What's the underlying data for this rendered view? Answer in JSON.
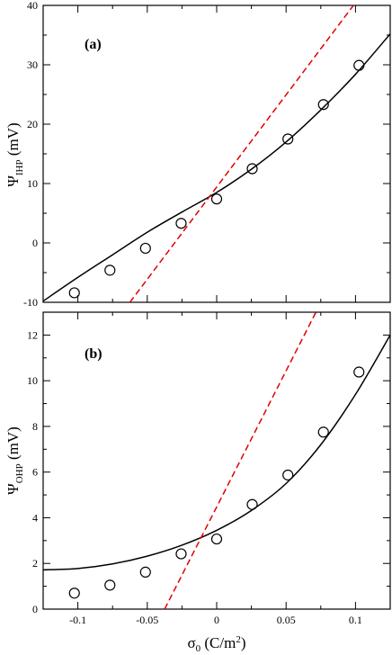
{
  "colors": {
    "axis": "#000000",
    "fit": "#000000",
    "linear": "#e00000",
    "marker": "#000000"
  },
  "xaxis": {
    "label_main": "σ",
    "label_sub": "0",
    "label_unit_pre": " (C/m",
    "label_unit_sup": "2",
    "label_unit_post": ")",
    "ticklabels": [
      "-0.1",
      "-0.05",
      "0",
      "0.05",
      "0.1"
    ]
  },
  "chart_data": [
    {
      "type": "scatter",
      "panel_label": "(a)",
      "ylabel_main": "Ψ",
      "ylabel_sub": "IHP",
      "ylabel_unit": " (mV)",
      "xlim": [
        -0.125,
        0.125
      ],
      "ylim": [
        -10,
        40
      ],
      "yticks": [
        -10,
        0,
        10,
        20,
        30,
        40
      ],
      "yticklabels": [
        "-10",
        "0",
        "10",
        "20",
        "30",
        "40"
      ],
      "grid": false,
      "series": [
        {
          "style": "circles",
          "x": [
            -0.1025,
            -0.0769,
            -0.0513,
            -0.0256,
            0.0,
            0.0256,
            0.0513,
            0.0769,
            0.1025
          ],
          "y": [
            -8.4,
            -4.6,
            -0.9,
            3.3,
            7.4,
            12.5,
            17.5,
            23.3,
            29.9
          ]
        },
        {
          "style": "solid-line",
          "x": [
            -0.125,
            -0.1,
            -0.075,
            -0.05,
            -0.025,
            0.0,
            0.025,
            0.05,
            0.075,
            0.1,
            0.125
          ],
          "y": [
            -9.8,
            -5.8,
            -2.0,
            1.8,
            5.2,
            8.5,
            12.4,
            17.0,
            22.4,
            28.4,
            35.2
          ]
        },
        {
          "style": "dashed-line",
          "x": [
            -0.0625,
            0.0985
          ],
          "y": [
            -10,
            40
          ]
        }
      ]
    },
    {
      "type": "scatter",
      "panel_label": "(b)",
      "ylabel_main": "Ψ",
      "ylabel_sub": "OHP",
      "ylabel_unit": " (mV)",
      "xlim": [
        -0.125,
        0.125
      ],
      "ylim": [
        0,
        13
      ],
      "yticks": [
        0,
        2,
        4,
        6,
        8,
        10,
        12
      ],
      "yticklabels": [
        "0",
        "2",
        "4",
        "6",
        "8",
        "10",
        "12"
      ],
      "grid": false,
      "series": [
        {
          "style": "circles",
          "x": [
            -0.1025,
            -0.0769,
            -0.0513,
            -0.0256,
            0.0,
            0.0256,
            0.0513,
            0.0769,
            0.1025
          ],
          "y": [
            0.7,
            1.05,
            1.62,
            2.42,
            3.07,
            4.58,
            5.87,
            7.75,
            10.38
          ]
        },
        {
          "style": "solid-line",
          "x": [
            -0.125,
            -0.1,
            -0.075,
            -0.05,
            -0.025,
            0.0,
            0.025,
            0.05,
            0.075,
            0.1,
            0.125
          ],
          "y": [
            1.72,
            1.78,
            1.98,
            2.32,
            2.8,
            3.45,
            4.32,
            5.5,
            7.2,
            9.4,
            12.0
          ]
        },
        {
          "style": "dashed-line",
          "x": [
            -0.0375,
            0.0715
          ],
          "y": [
            0,
            13
          ]
        }
      ]
    }
  ]
}
